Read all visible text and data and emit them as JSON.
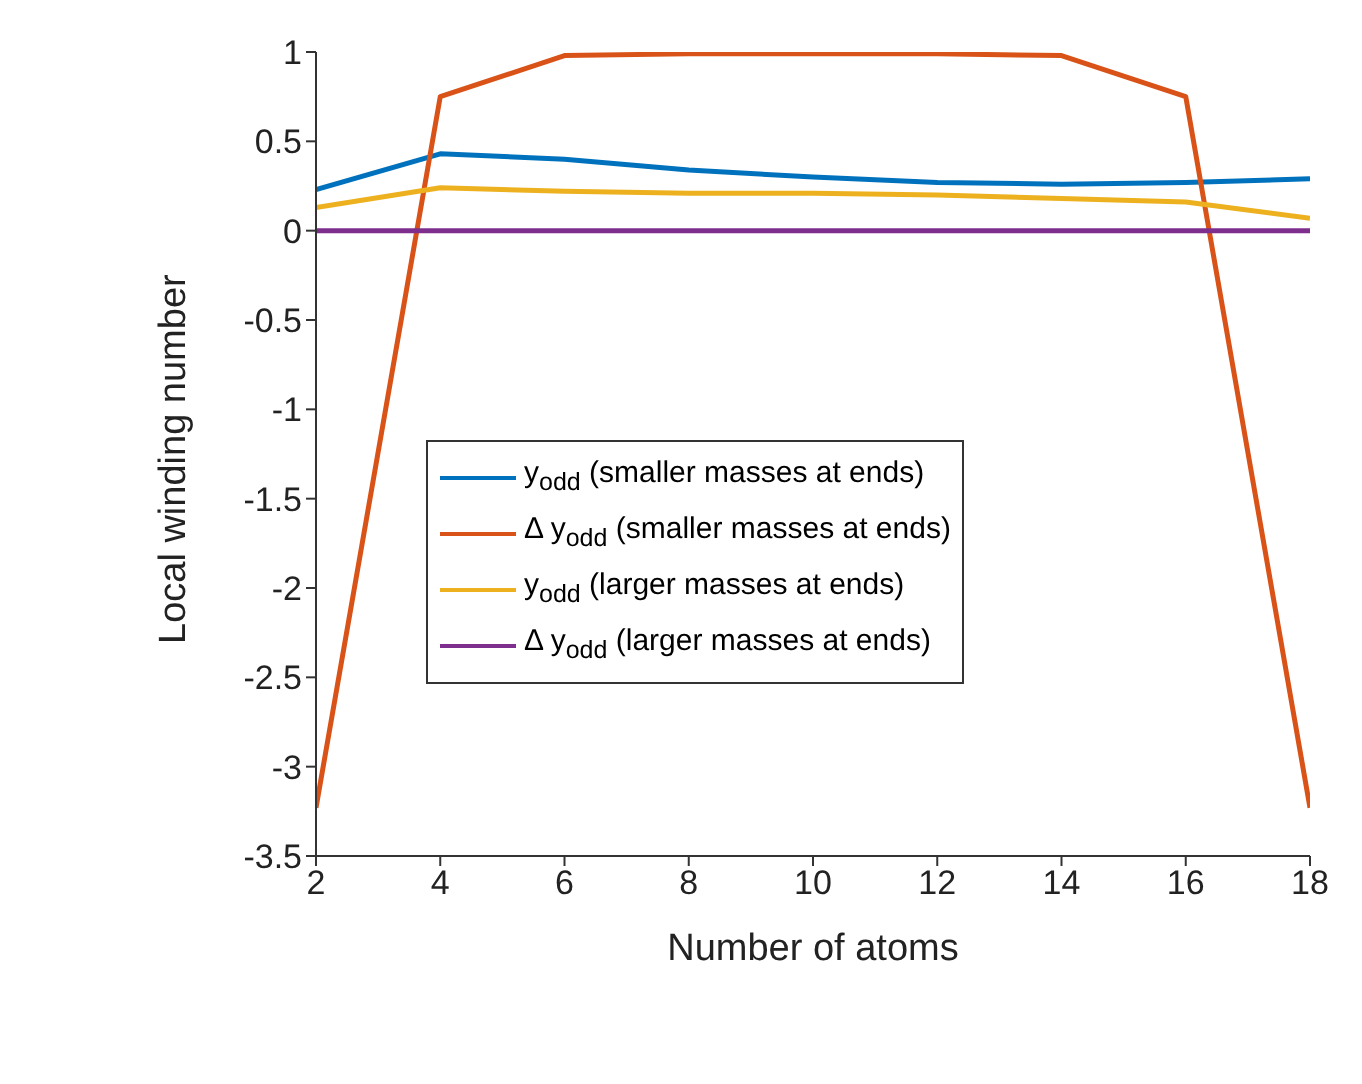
{
  "chart_data": {
    "type": "line",
    "xlabel": "Number of atoms",
    "ylabel": "Local winding number",
    "x": [
      2,
      4,
      6,
      8,
      10,
      12,
      14,
      16,
      18
    ],
    "series": [
      {
        "name": "y$_{odd}$ (smaller masses at ends)",
        "color": "#0072bd",
        "values": [
          0.23,
          0.43,
          0.4,
          0.34,
          0.3,
          0.27,
          0.26,
          0.27,
          0.29
        ]
      },
      {
        "name": "Δ y$_{odd}$ (smaller masses at ends)",
        "color": "#d95319",
        "values": [
          -3.23,
          0.75,
          0.98,
          0.99,
          0.99,
          0.99,
          0.98,
          0.75,
          -3.23
        ]
      },
      {
        "name": "y$_{odd}$ (larger masses at ends)",
        "color": "#edb120",
        "values": [
          0.13,
          0.24,
          0.22,
          0.21,
          0.21,
          0.2,
          0.18,
          0.16,
          0.07
        ]
      },
      {
        "name": "Δ y$_{odd}$ (larger masses at ends)",
        "color": "#7e2f8e",
        "values": [
          0,
          0,
          0,
          0,
          0,
          0,
          0,
          0,
          0
        ]
      }
    ],
    "xlim": [
      2,
      18
    ],
    "xticks": [
      2,
      4,
      6,
      8,
      10,
      12,
      14,
      16,
      18
    ],
    "ylim": [
      -3.5,
      1
    ],
    "yticks": [
      -3.5,
      -3,
      -2.5,
      -2,
      -1.5,
      -1,
      -0.5,
      0,
      0.5,
      1
    ],
    "legend": "center",
    "grid": false,
    "marker": "none",
    "line_style": "solid"
  }
}
